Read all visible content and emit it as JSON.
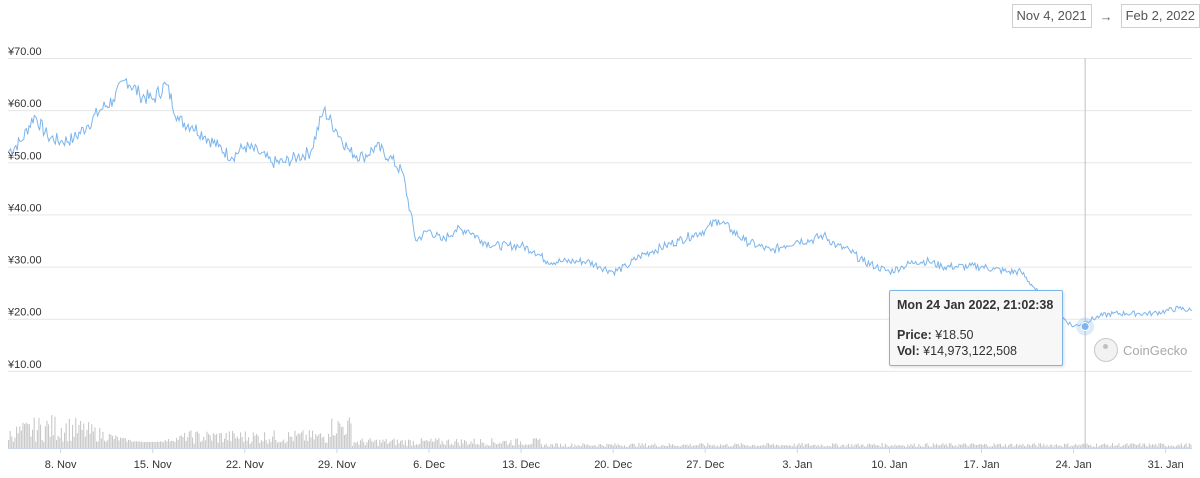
{
  "date_range": {
    "from": "Nov 4, 2021",
    "to": "Feb 2, 2022",
    "arrow": "→"
  },
  "tooltip": {
    "date": "Mon 24 Jan 2022, 21:02:38",
    "price_label": "Price:",
    "price_value": "¥18.50",
    "vol_label": "Vol:",
    "vol_value": "¥14,973,122,508"
  },
  "watermark": "CoinGecko",
  "colors": {
    "price_line": "#7cb5ec",
    "volume": "#c8c8c8",
    "grid": "#e6e6e6",
    "crosshair": "#c0c0c0"
  },
  "chart_data": {
    "type": "line",
    "title": "",
    "xlabel": "",
    "ylabel": "",
    "x_range": [
      "2021-11-04",
      "2022-02-02"
    ],
    "ylim": [
      0,
      70
    ],
    "y_ticks": [
      "¥10.00",
      "¥20.00",
      "¥30.00",
      "¥40.00",
      "¥50.00",
      "¥60.00",
      "¥70.00"
    ],
    "x_ticks": [
      "8. Nov",
      "15. Nov",
      "22. Nov",
      "29. Nov",
      "6. Dec",
      "13. Dec",
      "20. Dec",
      "27. Dec",
      "3. Jan",
      "10. Jan",
      "17. Jan",
      "24. Jan",
      "31. Jan"
    ],
    "grid": true,
    "legend": "none",
    "series": [
      {
        "values": [
          [
            "2021-11-04",
            52
          ],
          [
            "2021-11-05",
            54
          ],
          [
            "2021-11-06",
            59
          ],
          [
            "2021-11-07",
            55
          ],
          [
            "2021-11-08",
            54
          ],
          [
            "2021-11-09",
            54.5
          ],
          [
            "2021-11-10",
            57
          ],
          [
            "2021-11-11",
            60
          ],
          [
            "2021-11-12",
            62
          ],
          [
            "2021-11-13",
            66
          ],
          [
            "2021-11-14",
            63
          ],
          [
            "2021-11-15",
            62
          ],
          [
            "2021-11-16",
            65
          ],
          [
            "2021-11-17",
            58
          ],
          [
            "2021-11-18",
            57
          ],
          [
            "2021-11-19",
            55
          ],
          [
            "2021-11-20",
            53
          ],
          [
            "2021-11-21",
            51
          ],
          [
            "2021-11-22",
            53
          ],
          [
            "2021-11-23",
            52
          ],
          [
            "2021-11-24",
            50
          ],
          [
            "2021-11-25",
            50
          ],
          [
            "2021-11-26",
            51
          ],
          [
            "2021-11-27",
            52
          ],
          [
            "2021-11-28",
            60
          ],
          [
            "2021-11-29",
            56
          ],
          [
            "2021-11-30",
            52
          ],
          [
            "2021-12-01",
            51
          ],
          [
            "2021-12-02",
            53
          ],
          [
            "2021-12-03",
            51
          ],
          [
            "2021-12-04",
            48
          ],
          [
            "2021-12-05",
            35
          ],
          [
            "2021-12-06",
            37
          ],
          [
            "2021-12-07",
            35
          ],
          [
            "2021-12-08",
            37
          ],
          [
            "2021-12-09",
            37
          ],
          [
            "2021-12-10",
            35
          ],
          [
            "2021-12-11",
            34
          ],
          [
            "2021-12-12",
            34
          ],
          [
            "2021-12-13",
            34
          ],
          [
            "2021-12-14",
            33
          ],
          [
            "2021-12-15",
            31
          ],
          [
            "2021-12-16",
            31
          ],
          [
            "2021-12-17",
            31
          ],
          [
            "2021-12-18",
            31
          ],
          [
            "2021-12-19",
            30
          ],
          [
            "2021-12-20",
            29
          ],
          [
            "2021-12-21",
            30
          ],
          [
            "2021-12-22",
            32
          ],
          [
            "2021-12-23",
            33
          ],
          [
            "2021-12-24",
            34
          ],
          [
            "2021-12-25",
            35
          ],
          [
            "2021-12-26",
            36
          ],
          [
            "2021-12-27",
            37
          ],
          [
            "2021-12-28",
            39
          ],
          [
            "2021-12-29",
            37
          ],
          [
            "2021-12-30",
            35
          ],
          [
            "2021-12-31",
            34
          ],
          [
            "2022-01-01",
            33
          ],
          [
            "2022-01-02",
            34
          ],
          [
            "2022-01-03",
            35
          ],
          [
            "2022-01-04",
            35
          ],
          [
            "2022-01-05",
            36
          ],
          [
            "2022-01-06",
            34
          ],
          [
            "2022-01-07",
            33
          ],
          [
            "2022-01-08",
            31
          ],
          [
            "2022-01-09",
            30
          ],
          [
            "2022-01-10",
            29
          ],
          [
            "2022-01-11",
            30
          ],
          [
            "2022-01-12",
            31
          ],
          [
            "2022-01-13",
            31
          ],
          [
            "2022-01-14",
            30
          ],
          [
            "2022-01-15",
            30
          ],
          [
            "2022-01-16",
            30
          ],
          [
            "2022-01-17",
            30
          ],
          [
            "2022-01-18",
            29.5
          ],
          [
            "2022-01-19",
            29
          ],
          [
            "2022-01-20",
            29
          ],
          [
            "2022-01-21",
            26
          ],
          [
            "2022-01-22",
            22
          ],
          [
            "2022-01-23",
            20.5
          ],
          [
            "2022-01-24",
            18.5
          ],
          [
            "2022-01-25",
            19.5
          ],
          [
            "2022-01-26",
            20.5
          ],
          [
            "2022-01-27",
            21
          ],
          [
            "2022-01-28",
            21
          ],
          [
            "2022-01-29",
            21
          ],
          [
            "2022-01-30",
            21
          ],
          [
            "2022-01-31",
            21.5
          ],
          [
            "2022-02-01",
            22
          ],
          [
            "2022-02-02",
            21.5
          ]
        ]
      }
    ]
  }
}
